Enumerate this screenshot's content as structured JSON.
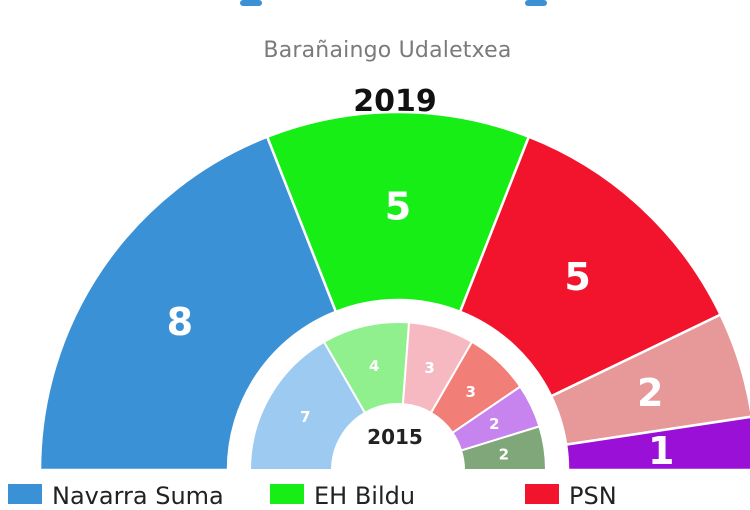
{
  "header": {
    "subtitle": "Barañaingo Udaletxea"
  },
  "chart_data": {
    "type": "parliament-semicircle",
    "outer": {
      "year": "2019",
      "segments": [
        {
          "value": 8,
          "label": "8",
          "color": "#3b91d6"
        },
        {
          "value": 5,
          "label": "5",
          "color": "#16ee16"
        },
        {
          "value": 5,
          "label": "5",
          "color": "#f2142d"
        },
        {
          "value": 2,
          "label": "2",
          "color": "#e79898"
        },
        {
          "value": 1,
          "label": "1",
          "color": "#9b10d6"
        }
      ]
    },
    "inner": {
      "year": "2015",
      "segments": [
        {
          "value": 7,
          "label": "7",
          "color": "#9ccaf0"
        },
        {
          "value": 4,
          "label": "4",
          "color": "#8ff08d"
        },
        {
          "value": 3,
          "label": "3",
          "color": "#f6b9c2"
        },
        {
          "value": 3,
          "label": "3",
          "color": "#f27e78"
        },
        {
          "value": 2,
          "label": "2",
          "color": "#c783ee"
        },
        {
          "value": 2,
          "label": "2",
          "color": "#7fa77a"
        }
      ]
    },
    "legend": [
      {
        "label": "Navarra Suma",
        "color": "#3b91d6"
      },
      {
        "label": "EH Bildu",
        "color": "#16ee16"
      },
      {
        "label": "PSN",
        "color": "#f2142d"
      }
    ]
  }
}
